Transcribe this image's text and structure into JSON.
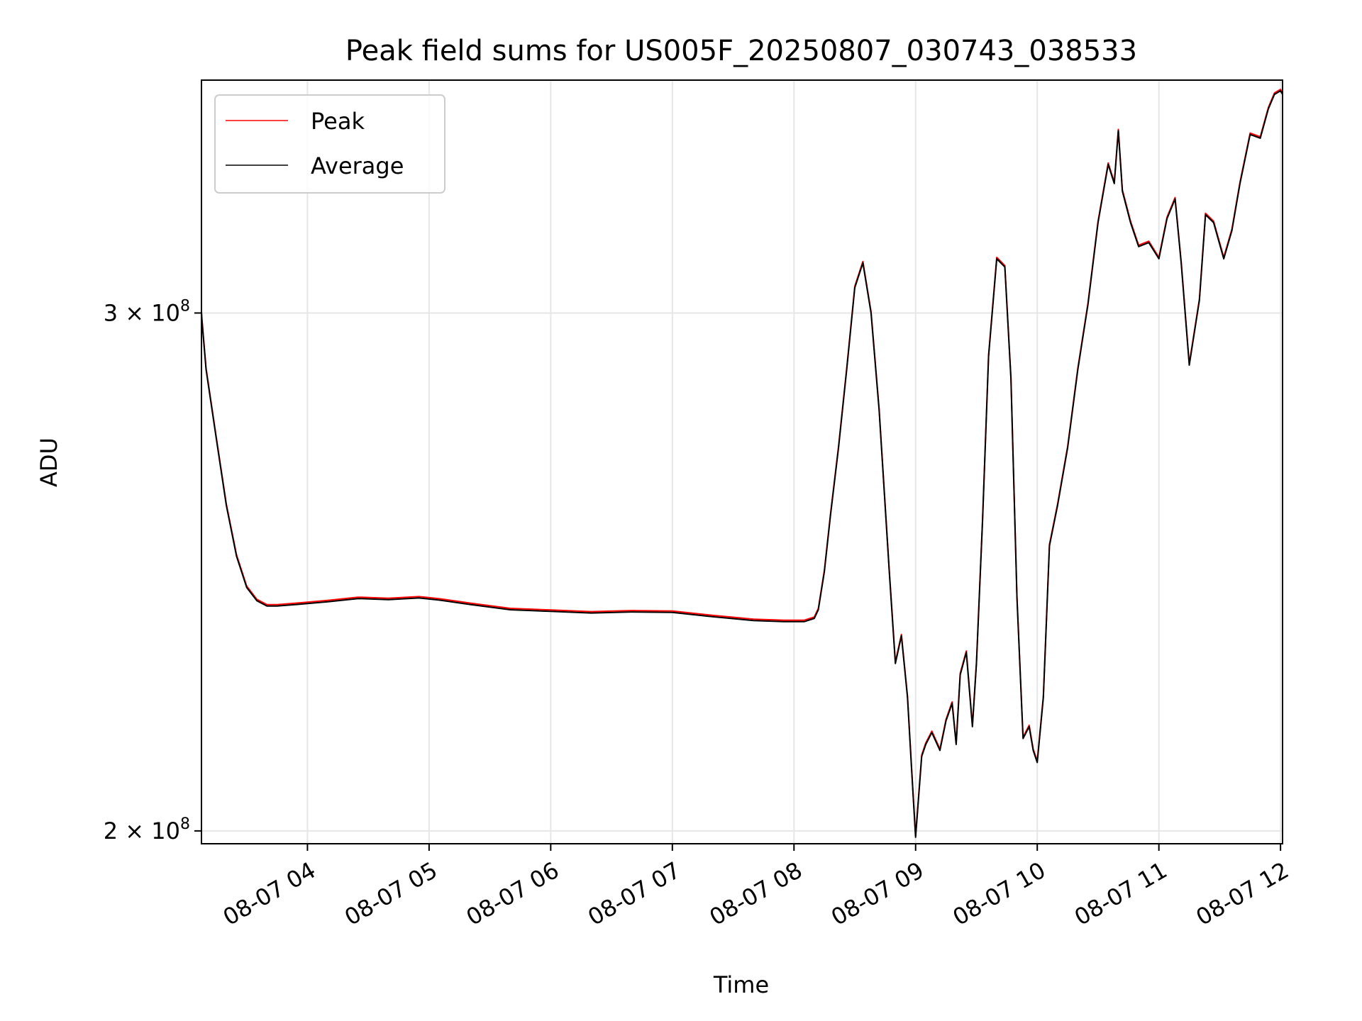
{
  "chart_data": {
    "type": "line",
    "title": "Peak field sums for US005F_20250807_030743_038533",
    "xlabel": "Time",
    "ylabel": "ADU",
    "y_scale": "log",
    "ylim": [
      198000000,
      360000000
    ],
    "xlim": [
      "2025-08-07 03:07:43",
      "2025-08-07 12:01:00"
    ],
    "grid": true,
    "legend_position": "upper left",
    "x_ticks": [
      {
        "t": "2025-08-07 04:00",
        "label": "08-07 04"
      },
      {
        "t": "2025-08-07 05:00",
        "label": "08-07 05"
      },
      {
        "t": "2025-08-07 06:00",
        "label": "08-07 06"
      },
      {
        "t": "2025-08-07 07:00",
        "label": "08-07 07"
      },
      {
        "t": "2025-08-07 08:00",
        "label": "08-07 08"
      },
      {
        "t": "2025-08-07 09:00",
        "label": "08-07 09"
      },
      {
        "t": "2025-08-07 10:00",
        "label": "08-07 10"
      },
      {
        "t": "2025-08-07 11:00",
        "label": "08-07 11"
      },
      {
        "t": "2025-08-07 12:00",
        "label": "08-07 12"
      }
    ],
    "y_ticks": [
      {
        "value": 200000000,
        "mantissa": "2",
        "base": "10",
        "exp": "8"
      },
      {
        "value": 300000000,
        "mantissa": "3",
        "base": "10",
        "exp": "8"
      }
    ],
    "series": [
      {
        "name": "Peak",
        "color": "#ff0000"
      },
      {
        "name": "Average",
        "color": "#000000"
      }
    ],
    "x": [
      "2025-08-07 03:07:43",
      "2025-08-07 03:08",
      "2025-08-07 03:10",
      "2025-08-07 03:15",
      "2025-08-07 03:20",
      "2025-08-07 03:25",
      "2025-08-07 03:30",
      "2025-08-07 03:35",
      "2025-08-07 03:40",
      "2025-08-07 03:45",
      "2025-08-07 03:55",
      "2025-08-07 04:10",
      "2025-08-07 04:25",
      "2025-08-07 04:40",
      "2025-08-07 04:55",
      "2025-08-07 05:05",
      "2025-08-07 05:20",
      "2025-08-07 05:40",
      "2025-08-07 06:00",
      "2025-08-07 06:20",
      "2025-08-07 06:40",
      "2025-08-07 07:00",
      "2025-08-07 07:20",
      "2025-08-07 07:40",
      "2025-08-07 07:55",
      "2025-08-07 08:05",
      "2025-08-07 08:10",
      "2025-08-07 08:12",
      "2025-08-07 08:15",
      "2025-08-07 08:18",
      "2025-08-07 08:22",
      "2025-08-07 08:26",
      "2025-08-07 08:30",
      "2025-08-07 08:34",
      "2025-08-07 08:38",
      "2025-08-07 08:42",
      "2025-08-07 08:47",
      "2025-08-07 08:50",
      "2025-08-07 08:53",
      "2025-08-07 08:56",
      "2025-08-07 08:58",
      "2025-08-07 09:00",
      "2025-08-07 09:03",
      "2025-08-07 09:05",
      "2025-08-07 09:08",
      "2025-08-07 09:12",
      "2025-08-07 09:15",
      "2025-08-07 09:18",
      "2025-08-07 09:20",
      "2025-08-07 09:22",
      "2025-08-07 09:25",
      "2025-08-07 09:28",
      "2025-08-07 09:30",
      "2025-08-07 09:33",
      "2025-08-07 09:36",
      "2025-08-07 09:40",
      "2025-08-07 09:44",
      "2025-08-07 09:47",
      "2025-08-07 09:50",
      "2025-08-07 09:53",
      "2025-08-07 09:56",
      "2025-08-07 09:58",
      "2025-08-07 10:00",
      "2025-08-07 10:03",
      "2025-08-07 10:06",
      "2025-08-07 10:10",
      "2025-08-07 10:15",
      "2025-08-07 10:20",
      "2025-08-07 10:25",
      "2025-08-07 10:30",
      "2025-08-07 10:35",
      "2025-08-07 10:38",
      "2025-08-07 10:40",
      "2025-08-07 10:42",
      "2025-08-07 10:46",
      "2025-08-07 10:50",
      "2025-08-07 10:55",
      "2025-08-07 11:00",
      "2025-08-07 11:04",
      "2025-08-07 11:08",
      "2025-08-07 11:11",
      "2025-08-07 11:15",
      "2025-08-07 11:20",
      "2025-08-07 11:23",
      "2025-08-07 11:27",
      "2025-08-07 11:32",
      "2025-08-07 11:36",
      "2025-08-07 11:40",
      "2025-08-07 11:45",
      "2025-08-07 11:50",
      "2025-08-07 11:54",
      "2025-08-07 11:57",
      "2025-08-07 12:00",
      "2025-08-07 12:01"
    ],
    "y": [
      300000000,
      298000000,
      287000000,
      272000000,
      258000000,
      248000000,
      242000000,
      239500000,
      238500000,
      238500000,
      238800000,
      239300000,
      239900000,
      239700000,
      240000000,
      239600000,
      238800000,
      237800000,
      237500000,
      237200000,
      237400000,
      237300000,
      236500000,
      235800000,
      235600000,
      235600000,
      236200000,
      237800000,
      245000000,
      256000000,
      270000000,
      287000000,
      306000000,
      312000000,
      300000000,
      278000000,
      245000000,
      228000000,
      233000000,
      222000000,
      210000000,
      199000000,
      212000000,
      214000000,
      216000000,
      213000000,
      218000000,
      221000000,
      214000000,
      226000000,
      230000000,
      217000000,
      228000000,
      255000000,
      290000000,
      313000000,
      311000000,
      285000000,
      240000000,
      215000000,
      217000000,
      213000000,
      211000000,
      222000000,
      250000000,
      258000000,
      270000000,
      287000000,
      302000000,
      322000000,
      337000000,
      332000000,
      346000000,
      330000000,
      322000000,
      316000000,
      317000000,
      313000000,
      323000000,
      328000000,
      312000000,
      288000000,
      303000000,
      324000000,
      322000000,
      313000000,
      320000000,
      332000000,
      345000000,
      344000000,
      352000000,
      356000000,
      357000000,
      356000000
    ]
  }
}
